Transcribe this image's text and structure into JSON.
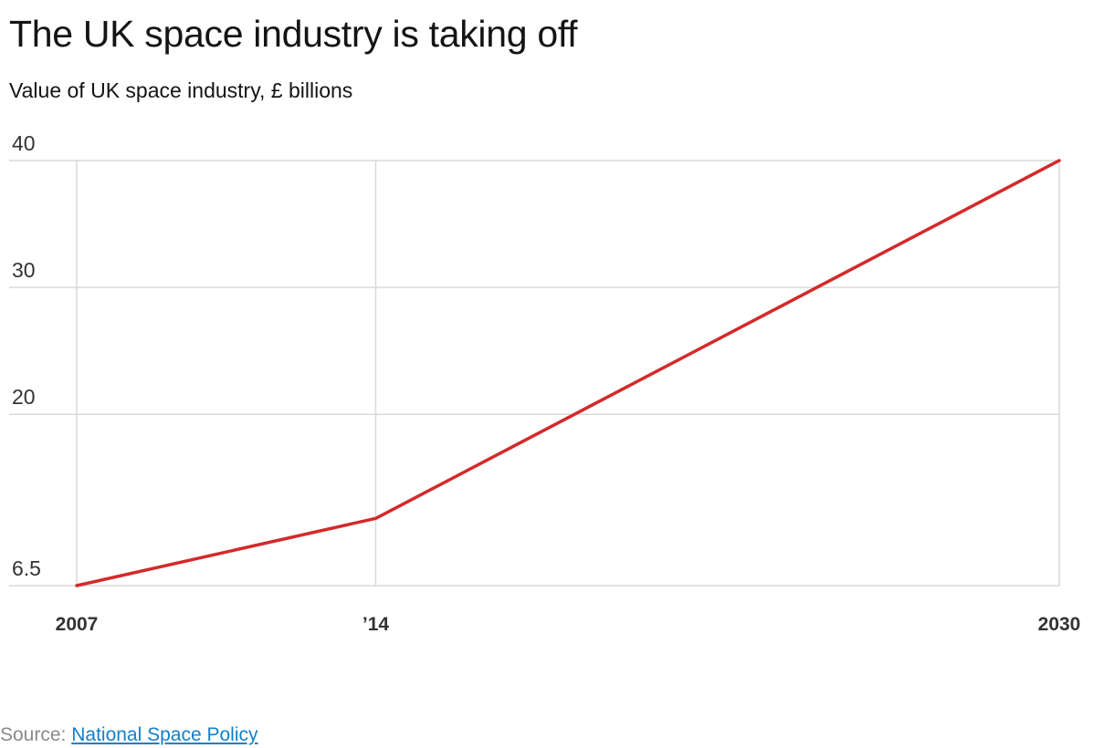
{
  "title": "The UK space industry is taking off",
  "subtitle": "Value of UK space industry, £ billions",
  "source": {
    "prefix": "Source: ",
    "link_text": "National Space Policy"
  },
  "colors": {
    "line": "#d32a2a",
    "grid": "#d9d9d9",
    "link": "#1380c7"
  },
  "chart_data": {
    "type": "line",
    "title": "The UK space industry is taking off",
    "subtitle": "Value of UK space industry, £ billions",
    "x": [
      2007,
      2014,
      2030
    ],
    "x_tick_labels": [
      "2007",
      "’14",
      "2030"
    ],
    "y_ticks": [
      6.5,
      20,
      30,
      40
    ],
    "y_tick_labels": [
      "6.5",
      "20",
      "30",
      "40"
    ],
    "xlim": [
      2007,
      2030
    ],
    "ylim": [
      6.5,
      40
    ],
    "grid": true,
    "series": [
      {
        "values": [
          6.5,
          11.8,
          40
        ]
      }
    ]
  }
}
